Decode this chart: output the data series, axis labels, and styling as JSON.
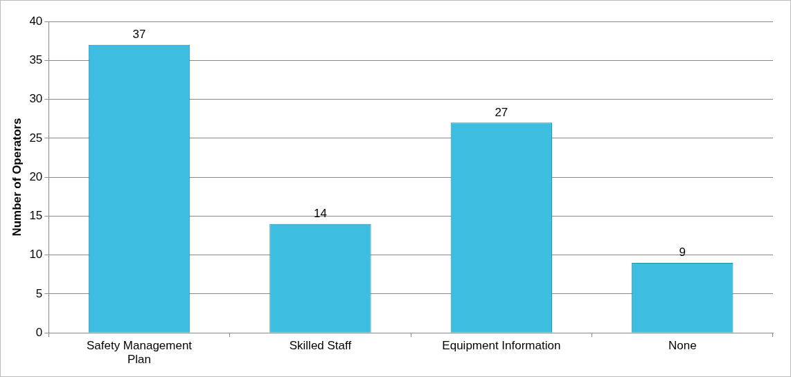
{
  "chart_data": {
    "type": "bar",
    "ylabel": "Number of Operators",
    "categories": [
      "Safety Management Plan",
      "Skilled Staff",
      "Equipment Information",
      "None"
    ],
    "values": [
      37,
      14,
      27,
      9
    ],
    "color": "#3dbde0",
    "ylim": [
      0,
      40
    ],
    "yticks": [
      0,
      5,
      10,
      15,
      20,
      25,
      30,
      35,
      40
    ],
    "grid": "y",
    "data_labels": true
  }
}
